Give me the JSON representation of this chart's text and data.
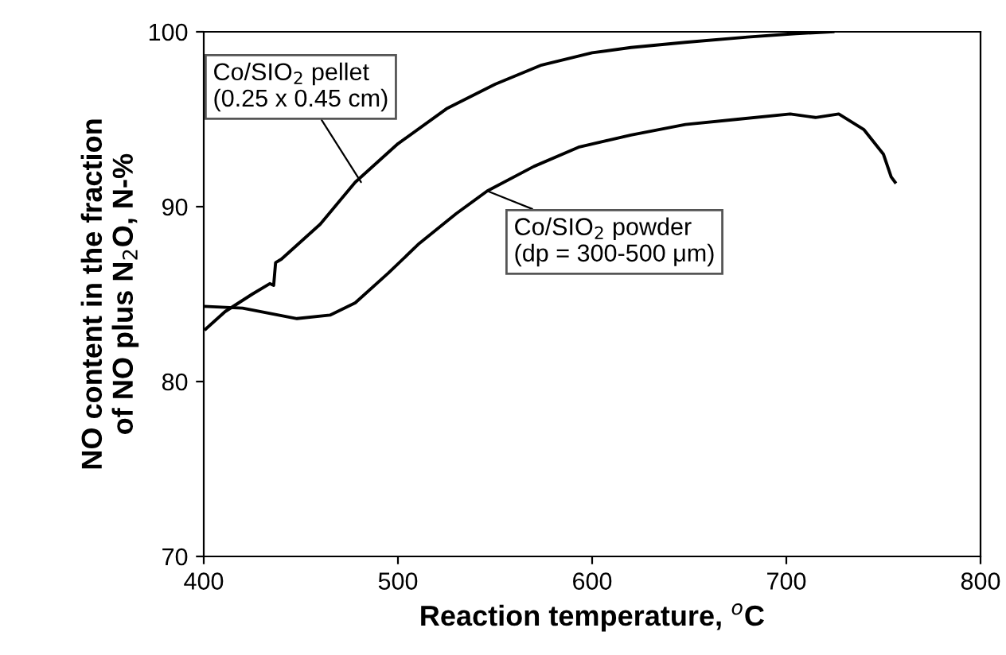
{
  "chart_data": {
    "type": "line",
    "xlabel": "Reaction temperature, $^{o}$C",
    "ylabel": "NO content in the fraction\nof NO plus N$_{2}$O, N-%",
    "xlim": [
      400,
      800
    ],
    "xticks": [
      400,
      500,
      600,
      700,
      800
    ],
    "ylim": [
      70,
      100
    ],
    "yticks": [
      70,
      80,
      90,
      100
    ],
    "grid": false,
    "legend": false,
    "marker": "none",
    "line_style": "solid",
    "series": [
      {
        "color": "#000000",
        "x": [
          401,
          411,
          425,
          434,
          436,
          437,
          440,
          460,
          478,
          500,
          525,
          550,
          574,
          600,
          620,
          648,
          680,
          705,
          724
        ],
        "values": [
          83.0,
          84.0,
          85.0,
          85.6,
          85.5,
          86.8,
          87.0,
          89.0,
          91.4,
          93.6,
          95.6,
          97.0,
          98.1,
          98.8,
          99.1,
          99.4,
          99.7,
          99.9,
          100
        ]
      },
      {
        "color": "#000000",
        "x": [
          400,
          420,
          448,
          465,
          478,
          495,
          511,
          530,
          546,
          570,
          593,
          620,
          648,
          675,
          702,
          715,
          727,
          740,
          750,
          754,
          756
        ],
        "values": [
          84.3,
          84.2,
          83.6,
          83.8,
          84.5,
          86.2,
          87.9,
          89.6,
          90.9,
          92.3,
          93.4,
          94.1,
          94.7,
          95.0,
          95.3,
          95.1,
          95.3,
          94.4,
          93.0,
          91.7,
          91.4
        ]
      }
    ],
    "annotations": [
      {
        "text": "Co/SIO$_{2}$ pellet\n(0.25 x 0.45 cm)",
        "x": 481,
        "y": 91.4
      },
      {
        "text": "Co/SIO$_{2}$ powder\n(dp = 300-500 μm)",
        "x": 546,
        "y": 90.9
      }
    ]
  }
}
